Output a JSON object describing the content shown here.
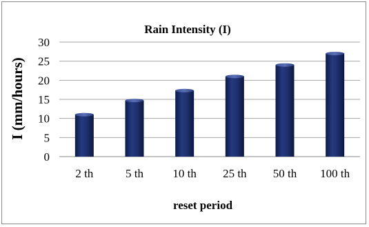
{
  "chart_data": {
    "type": "bar",
    "title": "Rain Intensity (I)",
    "xlabel": "reset period",
    "ylabel": "I  (mm/hours)",
    "categories": [
      "2 th",
      "5 th",
      "10 th",
      "25 th",
      "50 th",
      "100 th"
    ],
    "values": [
      11,
      14.7,
      17.3,
      21,
      24,
      27
    ],
    "ylim": [
      0,
      30
    ],
    "yticks": [
      "0",
      "5",
      "10",
      "15",
      "20",
      "25",
      "30"
    ],
    "grid": true,
    "legend": "none",
    "bar_color": "#1f2f6b"
  }
}
